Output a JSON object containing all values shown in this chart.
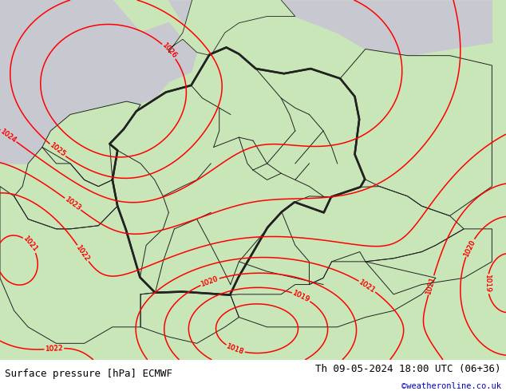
{
  "title_left": "Surface pressure [hPa] ECMWF",
  "title_right": "Th 09-05-2024 18:00 UTC (06+36)",
  "credit": "©weatheronline.co.uk",
  "bg_map_color": "#c8e6b8",
  "sea_color": "#c8c8d0",
  "border_color": "#222222",
  "contour_color": "#ff0000",
  "title_color": "#000000",
  "credit_color": "#0000cc",
  "bottom_bar_color": "#ffffff",
  "font_size_title": 9,
  "font_size_credit": 7.5,
  "figsize": [
    6.34,
    4.9
  ],
  "dpi": 100,
  "lon_min": 2.0,
  "lon_max": 20.0,
  "lat_min": 45.5,
  "lat_max": 56.5
}
